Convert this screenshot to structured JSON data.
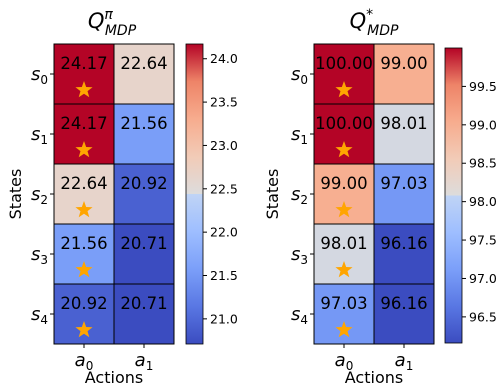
{
  "chart_data": [
    {
      "type": "heatmap",
      "title_main": "Q",
      "title_sup": "π",
      "title_sub": "MDP",
      "row_labels": [
        {
          "main": "s",
          "sub": "0"
        },
        {
          "main": "s",
          "sub": "1"
        },
        {
          "main": "s",
          "sub": "2"
        },
        {
          "main": "s",
          "sub": "3"
        },
        {
          "main": "s",
          "sub": "4"
        }
      ],
      "col_labels": [
        {
          "main": "a",
          "sub": "0"
        },
        {
          "main": "a",
          "sub": "1"
        }
      ],
      "xlabel": "Actions",
      "ylabel": "States",
      "values": [
        [
          24.17,
          22.64
        ],
        [
          24.17,
          21.56
        ],
        [
          22.64,
          20.92
        ],
        [
          21.56,
          20.71
        ],
        [
          20.92,
          20.71
        ]
      ],
      "labels": [
        [
          "24.17",
          "22.64"
        ],
        [
          "24.17",
          "21.56"
        ],
        [
          "22.64",
          "20.92"
        ],
        [
          "21.56",
          "20.71"
        ],
        [
          "20.92",
          "20.71"
        ]
      ],
      "stars": [
        [
          0,
          0
        ],
        [
          1,
          0
        ],
        [
          2,
          0
        ],
        [
          3,
          0
        ],
        [
          4,
          0
        ]
      ],
      "star_color": "#ffa500",
      "colormap": "coolwarm",
      "vmin": 20.71,
      "vmax": 24.17,
      "colorbar_ticks": [
        21.0,
        21.5,
        22.0,
        22.5,
        23.0,
        23.5,
        24.0
      ],
      "colorbar_tick_labels": [
        "21.0",
        "21.5",
        "22.0",
        "22.5",
        "23.0",
        "23.5",
        "24.0"
      ]
    },
    {
      "type": "heatmap",
      "title_main": "Q",
      "title_sup": "*",
      "title_sub": "MDP",
      "row_labels": [
        {
          "main": "s",
          "sub": "0"
        },
        {
          "main": "s",
          "sub": "1"
        },
        {
          "main": "s",
          "sub": "2"
        },
        {
          "main": "s",
          "sub": "3"
        },
        {
          "main": "s",
          "sub": "4"
        }
      ],
      "col_labels": [
        {
          "main": "a",
          "sub": "0"
        },
        {
          "main": "a",
          "sub": "1"
        }
      ],
      "xlabel": "Actions",
      "ylabel": "States",
      "values": [
        [
          100.0,
          99.0
        ],
        [
          100.0,
          98.01
        ],
        [
          99.0,
          97.03
        ],
        [
          98.01,
          96.16
        ],
        [
          97.03,
          96.16
        ]
      ],
      "labels": [
        [
          "100.00",
          "99.00"
        ],
        [
          "100.00",
          "98.01"
        ],
        [
          "99.00",
          "97.03"
        ],
        [
          "98.01",
          "96.16"
        ],
        [
          "97.03",
          "96.16"
        ]
      ],
      "stars": [
        [
          0,
          0
        ],
        [
          1,
          0
        ],
        [
          2,
          0
        ],
        [
          3,
          0
        ],
        [
          4,
          0
        ]
      ],
      "star_color": "#ffa500",
      "colormap": "coolwarm",
      "vmin": 96.16,
      "vmax": 100.0,
      "colorbar_ticks": [
        96.5,
        97.0,
        97.5,
        98.0,
        98.5,
        99.0,
        99.5
      ],
      "colorbar_tick_labels": [
        "96.5",
        "97.0",
        "97.5",
        "98.0",
        "98.5",
        "99.0",
        "99.5"
      ]
    }
  ]
}
